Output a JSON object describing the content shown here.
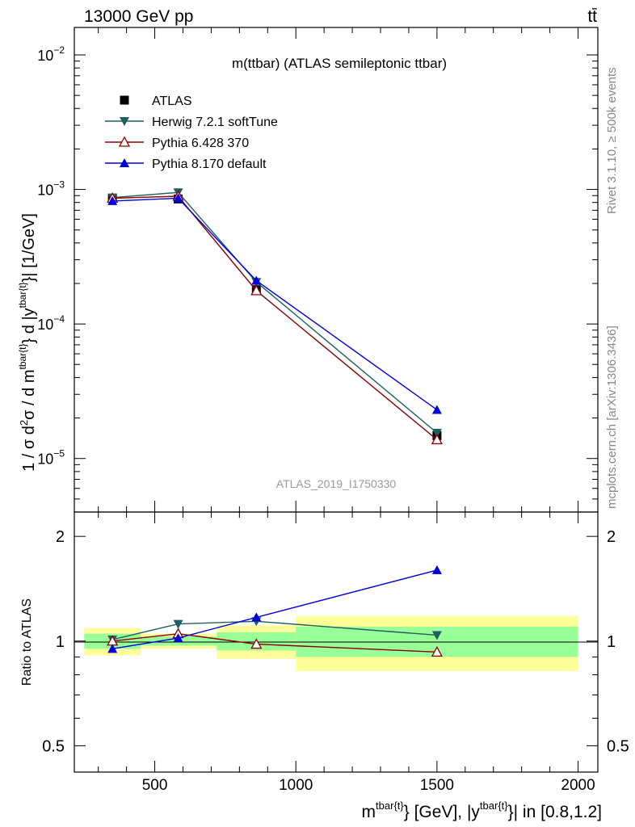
{
  "header": {
    "left": "13000 GeV pp",
    "right": "tt̄"
  },
  "side_labels": {
    "rivet": "Rivet 3.1.10, ≥ 500k events",
    "mcplots": "mcplots.cern.ch [arXiv:1306.3436]"
  },
  "colors": {
    "atlas": "#000000",
    "herwig": "#1f5f5f",
    "pythia6": "#8b0000",
    "pythia8": "#0000dd",
    "band_inner": "#99ff99",
    "band_outer": "#ffff99",
    "watermark": "#999999"
  },
  "chart_data": [
    {
      "type": "line",
      "panel": "main",
      "title": "m(ttbar) (ATLAS semileptonic ttbar)",
      "watermark": "ATLAS_2019_I1750330",
      "yscale": "log",
      "ylabel": "1 / σ d²σ / d m^{tbar{t}} d |y^{tbar{t}}| [1/GeV]",
      "xlim": [
        215,
        2070
      ],
      "ylim": [
        4e-06,
        0.016
      ],
      "y_ticks": [
        {
          "value": 1e-05,
          "base": "10",
          "exp": "−5"
        },
        {
          "value": 0.0001,
          "base": "10",
          "exp": "−4"
        },
        {
          "value": 0.001,
          "base": "10",
          "exp": "−3"
        },
        {
          "value": 0.01,
          "base": "10",
          "exp": "−2"
        }
      ],
      "legend_position": "top-left",
      "x": [
        350,
        583,
        860,
        1500
      ],
      "series": [
        {
          "name": "ATLAS",
          "marker": "square",
          "color_key": "atlas",
          "line": false,
          "values": [
            0.00086,
            0.00085,
            0.00018,
            1.48e-05
          ]
        },
        {
          "name": "Herwig 7.2.1 softTune",
          "marker": "triangle-down",
          "color_key": "herwig",
          "line": true,
          "values": [
            0.00087,
            0.00095,
            0.000205,
            1.55e-05
          ]
        },
        {
          "name": "Pythia 6.428 370",
          "marker": "triangle-up-open",
          "color_key": "pythia6",
          "line": true,
          "values": [
            0.00086,
            0.00089,
            0.000177,
            1.38e-05
          ]
        },
        {
          "name": "Pythia 8.170 default",
          "marker": "triangle-up",
          "color_key": "pythia8",
          "line": true,
          "values": [
            0.00082,
            0.00086,
            0.00021,
            2.3e-05
          ]
        }
      ]
    },
    {
      "type": "line",
      "panel": "ratio",
      "ylabel": "Ratio to ATLAS",
      "xlabel": "m^{tbar{t}} [GeV], |y^{tbar{t}}| in [0.8,1.2]",
      "xlim": [
        215,
        2070
      ],
      "ylim": [
        0.42,
        2.35
      ],
      "y_ticks": [
        {
          "value": 0.5,
          "label": "0.5"
        },
        {
          "value": 1,
          "label": "1"
        },
        {
          "value": 2,
          "label": "2"
        }
      ],
      "x_ticks": [
        {
          "value": 500,
          "label": "500"
        },
        {
          "value": 1000,
          "label": "1000"
        },
        {
          "value": 1500,
          "label": "1500"
        },
        {
          "value": 2000,
          "label": "2000"
        }
      ],
      "bins": [
        {
          "lo": 250,
          "hi": 450,
          "inner": [
            0.95,
            1.05
          ],
          "outer": [
            0.91,
            1.09
          ]
        },
        {
          "lo": 450,
          "hi": 720,
          "inner": [
            0.97,
            1.03
          ],
          "outer": [
            0.95,
            1.05
          ]
        },
        {
          "lo": 720,
          "hi": 1000,
          "inner": [
            0.94,
            1.06
          ],
          "outer": [
            0.89,
            1.11
          ]
        },
        {
          "lo": 1000,
          "hi": 2000,
          "inner": [
            0.9,
            1.1
          ],
          "outer": [
            0.82,
            1.18
          ]
        }
      ],
      "x": [
        350,
        583,
        860,
        1500
      ],
      "series": [
        {
          "name": "Herwig 7.2.1 softTune",
          "marker": "triangle-down",
          "color_key": "herwig",
          "values": [
            1.01,
            1.12,
            1.14,
            1.04
          ]
        },
        {
          "name": "Pythia 6.428 370",
          "marker": "triangle-up-open",
          "color_key": "pythia6",
          "values": [
            1.0,
            1.05,
            0.98,
            0.93
          ]
        },
        {
          "name": "Pythia 8.170 default",
          "marker": "triangle-up",
          "color_key": "pythia8",
          "values": [
            0.95,
            1.02,
            1.17,
            1.6
          ]
        }
      ]
    }
  ]
}
